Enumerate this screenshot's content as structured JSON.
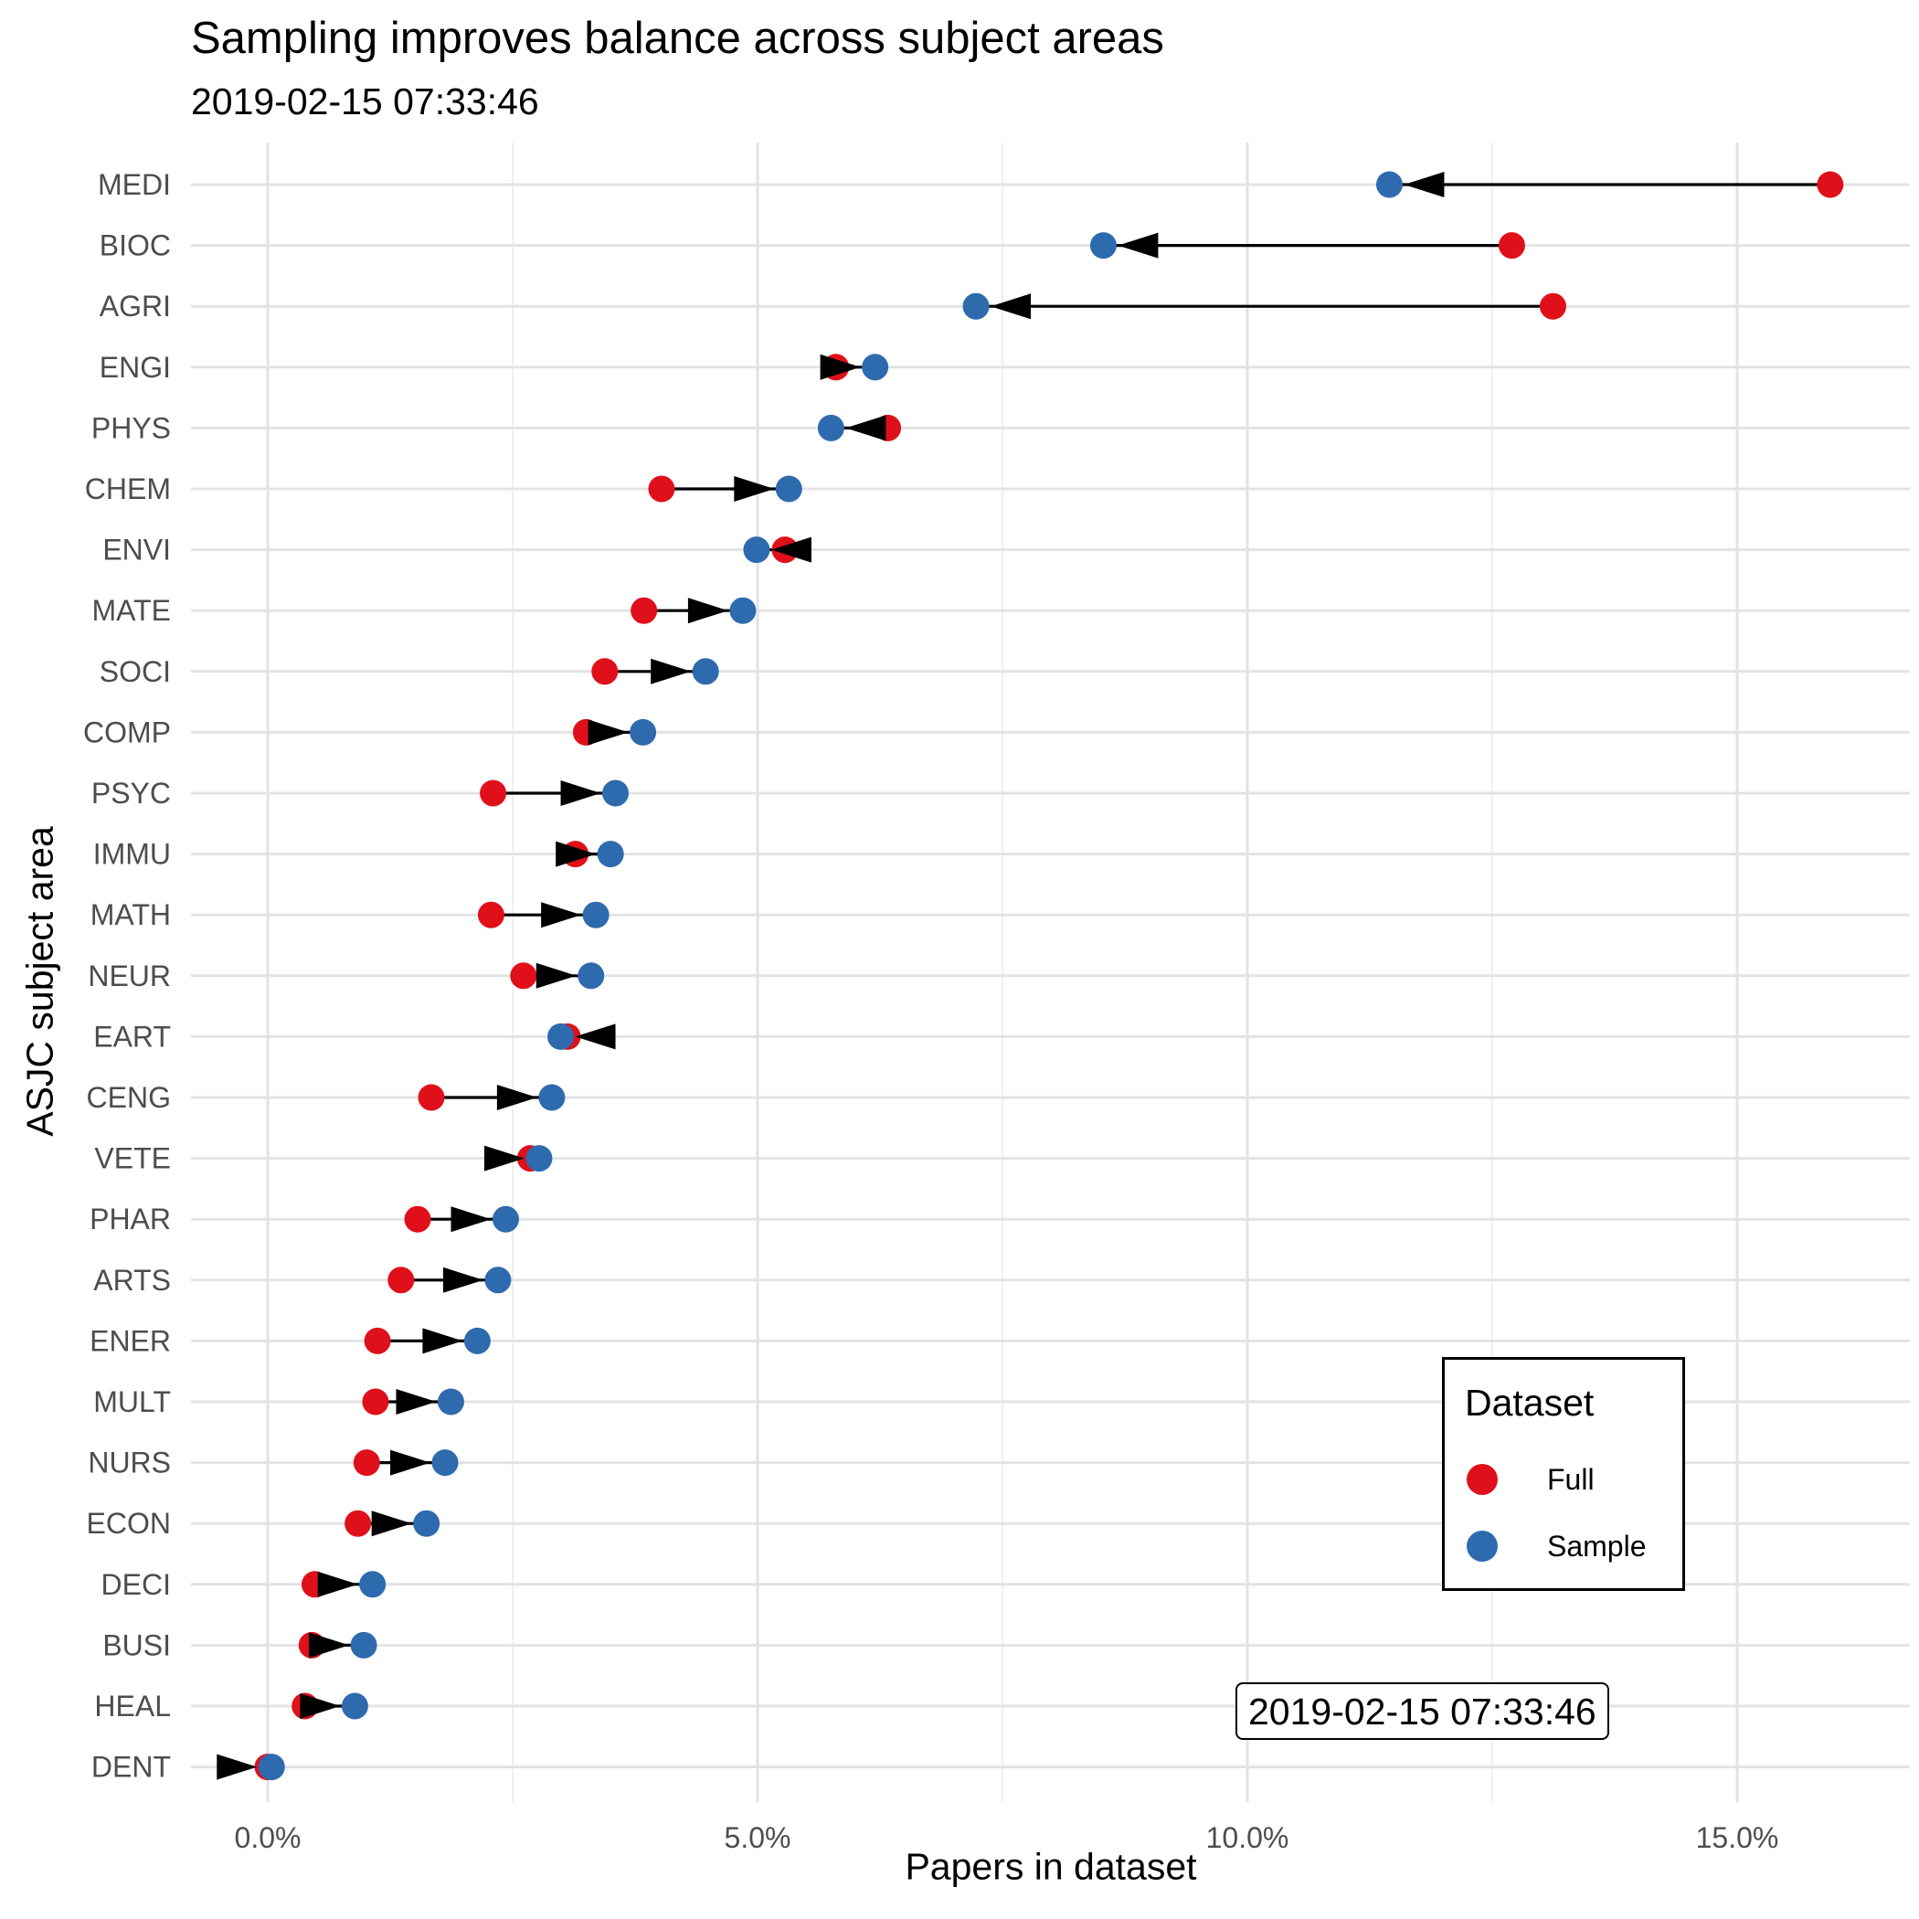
{
  "title": "Sampling improves balance across subject areas",
  "subtitle": "2019-02-15 07:33:46",
  "annotation": "2019-02-15 07:33:46",
  "legend": {
    "title": "Dataset",
    "items": [
      {
        "label": "Full",
        "color": "#e0101a"
      },
      {
        "label": "Sample",
        "color": "#2e6aae"
      }
    ]
  },
  "chart_data": {
    "type": "scatter",
    "title": "Sampling improves balance across subject areas",
    "subtitle": "2019-02-15 07:33:46",
    "xlabel": "Papers in dataset",
    "ylabel": "ASJC subject area",
    "xlim": [
      -0.8,
      16.6
    ],
    "x_ticks": [
      "0.0%",
      "5.0%",
      "10.0%",
      "15.0%"
    ],
    "x_tick_values": [
      0,
      5,
      10,
      15
    ],
    "grid": true,
    "legend_position": "bottom-right",
    "categories": [
      "MEDI",
      "BIOC",
      "AGRI",
      "ENGI",
      "PHYS",
      "CHEM",
      "ENVI",
      "MATE",
      "SOCI",
      "COMP",
      "PSYC",
      "IMMU",
      "MATH",
      "NEUR",
      "EART",
      "CENG",
      "VETE",
      "PHAR",
      "ARTS",
      "ENER",
      "MULT",
      "NURS",
      "ECON",
      "DECI",
      "BUSI",
      "HEAL",
      "DENT"
    ],
    "series": [
      {
        "name": "Full",
        "color": "#e0101a",
        "values": [
          15.95,
          12.7,
          13.12,
          5.8,
          6.33,
          4.02,
          5.28,
          3.84,
          3.44,
          3.25,
          2.3,
          3.14,
          2.28,
          2.61,
          3.06,
          1.67,
          2.68,
          1.53,
          1.36,
          1.12,
          1.1,
          1.01,
          0.92,
          0.48,
          0.45,
          0.38,
          0.0
        ]
      },
      {
        "name": "Sample",
        "color": "#2e6aae",
        "values": [
          11.45,
          8.53,
          7.23,
          6.2,
          5.75,
          5.32,
          4.99,
          4.85,
          4.47,
          3.83,
          3.55,
          3.5,
          3.35,
          3.3,
          2.99,
          2.9,
          2.77,
          2.43,
          2.35,
          2.14,
          1.87,
          1.81,
          1.62,
          1.07,
          0.98,
          0.89,
          0.04
        ]
      }
    ],
    "arrows": "from Full to Sample"
  }
}
